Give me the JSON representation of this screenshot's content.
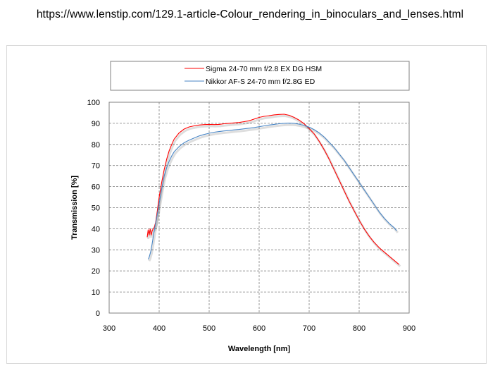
{
  "page": {
    "url_text": "https://www.lenstip.com/129.1-article-Colour_rendering_in_binoculars_and_lenses.html"
  },
  "chart_data": {
    "type": "line",
    "title": "",
    "xlabel": "Wavelength [nm]",
    "ylabel": "Transmission [%]",
    "xlim": [
      300,
      900
    ],
    "ylim": [
      0,
      100
    ],
    "x_ticks": [
      300,
      400,
      500,
      600,
      700,
      800,
      900
    ],
    "y_ticks": [
      0,
      10,
      20,
      30,
      40,
      50,
      60,
      70,
      80,
      90,
      100
    ],
    "x_tick_labels": [
      "300",
      "400",
      "500",
      "600",
      "700",
      "800",
      "900"
    ],
    "y_tick_labels": [
      "0",
      "10",
      "20",
      "30",
      "40",
      "50",
      "60",
      "70",
      "80",
      "90",
      "100"
    ],
    "grid": "dashed",
    "legend_position": "top",
    "series": [
      {
        "name": "Sigma 24-70 mm f/2.8 EX DG HSM",
        "color": "#ff0000",
        "points": [
          [
            376,
            36
          ],
          [
            378,
            39.5
          ],
          [
            380,
            37
          ],
          [
            382,
            40
          ],
          [
            384,
            37
          ],
          [
            386,
            39
          ],
          [
            388,
            40
          ],
          [
            390,
            40.5
          ],
          [
            393,
            43
          ],
          [
            396,
            48
          ],
          [
            400,
            55
          ],
          [
            405,
            62
          ],
          [
            410,
            68
          ],
          [
            415,
            73
          ],
          [
            420,
            77
          ],
          [
            425,
            80
          ],
          [
            430,
            82.5
          ],
          [
            440,
            85.5
          ],
          [
            450,
            87.3
          ],
          [
            460,
            88.3
          ],
          [
            470,
            88.8
          ],
          [
            480,
            89.2
          ],
          [
            490,
            89.4
          ],
          [
            500,
            89.5
          ],
          [
            510,
            89.4
          ],
          [
            520,
            89.5
          ],
          [
            530,
            89.8
          ],
          [
            540,
            90
          ],
          [
            550,
            90.2
          ],
          [
            560,
            90.4
          ],
          [
            570,
            90.8
          ],
          [
            580,
            91.2
          ],
          [
            590,
            92
          ],
          [
            600,
            92.8
          ],
          [
            610,
            93.3
          ],
          [
            620,
            93.6
          ],
          [
            630,
            94
          ],
          [
            640,
            94.2
          ],
          [
            650,
            94.3
          ],
          [
            660,
            93.8
          ],
          [
            670,
            92.8
          ],
          [
            680,
            91.5
          ],
          [
            690,
            89.8
          ],
          [
            700,
            87.5
          ],
          [
            710,
            85
          ],
          [
            720,
            81.5
          ],
          [
            730,
            77.5
          ],
          [
            740,
            73
          ],
          [
            750,
            68
          ],
          [
            760,
            63
          ],
          [
            770,
            58
          ],
          [
            780,
            53
          ],
          [
            790,
            48.5
          ],
          [
            800,
            44
          ],
          [
            810,
            40
          ],
          [
            820,
            36.5
          ],
          [
            830,
            33.5
          ],
          [
            840,
            31
          ],
          [
            850,
            29
          ],
          [
            860,
            27
          ],
          [
            870,
            25
          ],
          [
            880,
            23
          ]
        ]
      },
      {
        "name": "Nikkor AF-S 24-70 mm f/2.8G ED",
        "color": "#4a86c5",
        "points": [
          [
            378,
            25.5
          ],
          [
            380,
            26.5
          ],
          [
            383,
            29
          ],
          [
            386,
            33
          ],
          [
            390,
            39
          ],
          [
            395,
            45
          ],
          [
            400,
            52
          ],
          [
            405,
            59
          ],
          [
            410,
            65
          ],
          [
            415,
            69
          ],
          [
            420,
            72
          ],
          [
            425,
            74.5
          ],
          [
            430,
            76.5
          ],
          [
            440,
            79
          ],
          [
            450,
            80.8
          ],
          [
            460,
            82
          ],
          [
            470,
            83
          ],
          [
            480,
            84
          ],
          [
            490,
            84.7
          ],
          [
            500,
            85.3
          ],
          [
            510,
            85.8
          ],
          [
            520,
            86.1
          ],
          [
            530,
            86.4
          ],
          [
            540,
            86.6
          ],
          [
            550,
            86.9
          ],
          [
            560,
            87.1
          ],
          [
            570,
            87.4
          ],
          [
            580,
            87.7
          ],
          [
            590,
            88
          ],
          [
            600,
            88.4
          ],
          [
            610,
            88.8
          ],
          [
            620,
            89.2
          ],
          [
            630,
            89.5
          ],
          [
            640,
            89.8
          ],
          [
            650,
            90
          ],
          [
            660,
            90.1
          ],
          [
            670,
            90
          ],
          [
            680,
            89.6
          ],
          [
            690,
            89
          ],
          [
            700,
            88.2
          ],
          [
            710,
            87
          ],
          [
            720,
            85.5
          ],
          [
            730,
            83.5
          ],
          [
            740,
            81
          ],
          [
            750,
            78.5
          ],
          [
            760,
            75.5
          ],
          [
            770,
            72.5
          ],
          [
            780,
            69
          ],
          [
            790,
            65.5
          ],
          [
            800,
            62
          ],
          [
            810,
            58.5
          ],
          [
            820,
            55
          ],
          [
            830,
            51.5
          ],
          [
            840,
            48
          ],
          [
            850,
            45
          ],
          [
            860,
            42.5
          ],
          [
            870,
            40.5
          ],
          [
            875,
            39
          ]
        ]
      }
    ]
  }
}
